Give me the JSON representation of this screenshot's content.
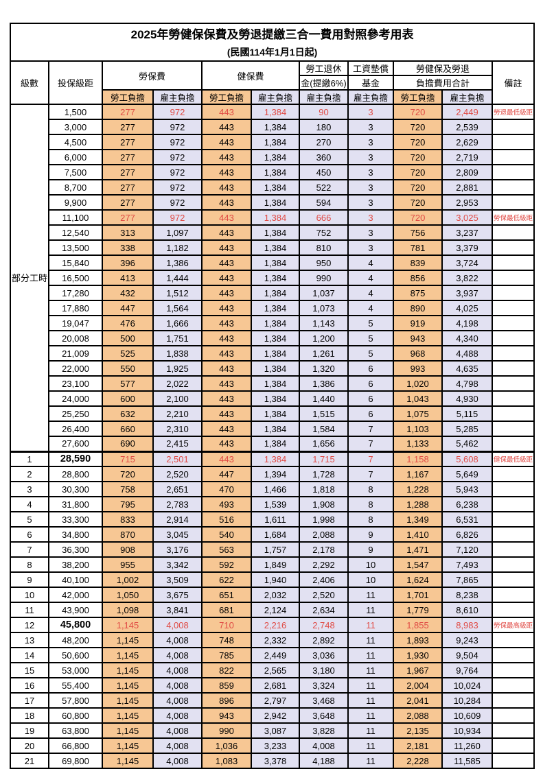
{
  "title": "2025年勞健保保費及勞退提繳三合一費用對照參考用表",
  "subtitle": "(民國114年1月1日起)",
  "header": {
    "level": "級數",
    "bracket": "投保級距",
    "labor": "勞保費",
    "health": "健保費",
    "pension1": "勞工退休",
    "pension2": "金(提繳6%)",
    "fund1": "工資墊償",
    "fund2": "基金",
    "total1": "勞健保及勞退",
    "total2": "負擔費用合計",
    "note": "備註",
    "employee": "勞工負擔",
    "employer": "雇主負擔"
  },
  "part_time_label": "部分工時",
  "part_time_rowspan": 23,
  "colors": {
    "employee_bg": "#F7C794",
    "employer_bg": "#E2E1F2",
    "red_text": "#E04A44"
  },
  "rows": [
    {
      "level": null,
      "bracket": "1,500",
      "v": [
        "277",
        "972",
        "443",
        "1,384",
        "90",
        "3",
        "720",
        "2,449"
      ],
      "note": "勞退最低級距",
      "red": true
    },
    {
      "level": null,
      "bracket": "3,000",
      "v": [
        "277",
        "972",
        "443",
        "1,384",
        "180",
        "3",
        "720",
        "2,539"
      ],
      "note": ""
    },
    {
      "level": null,
      "bracket": "4,500",
      "v": [
        "277",
        "972",
        "443",
        "1,384",
        "270",
        "3",
        "720",
        "2,629"
      ],
      "note": ""
    },
    {
      "level": null,
      "bracket": "6,000",
      "v": [
        "277",
        "972",
        "443",
        "1,384",
        "360",
        "3",
        "720",
        "2,719"
      ],
      "note": ""
    },
    {
      "level": null,
      "bracket": "7,500",
      "v": [
        "277",
        "972",
        "443",
        "1,384",
        "450",
        "3",
        "720",
        "2,809"
      ],
      "note": ""
    },
    {
      "level": null,
      "bracket": "8,700",
      "v": [
        "277",
        "972",
        "443",
        "1,384",
        "522",
        "3",
        "720",
        "2,881"
      ],
      "note": ""
    },
    {
      "level": null,
      "bracket": "9,900",
      "v": [
        "277",
        "972",
        "443",
        "1,384",
        "594",
        "3",
        "720",
        "2,953"
      ],
      "note": ""
    },
    {
      "level": null,
      "bracket": "11,100",
      "v": [
        "277",
        "972",
        "443",
        "1,384",
        "666",
        "3",
        "720",
        "3,025"
      ],
      "note": "勞保最低級距",
      "red": true
    },
    {
      "level": null,
      "bracket": "12,540",
      "v": [
        "313",
        "1,097",
        "443",
        "1,384",
        "752",
        "3",
        "756",
        "3,237"
      ],
      "note": ""
    },
    {
      "level": null,
      "bracket": "13,500",
      "v": [
        "338",
        "1,182",
        "443",
        "1,384",
        "810",
        "3",
        "781",
        "3,379"
      ],
      "note": ""
    },
    {
      "level": null,
      "bracket": "15,840",
      "v": [
        "396",
        "1,386",
        "443",
        "1,384",
        "950",
        "4",
        "839",
        "3,724"
      ],
      "note": ""
    },
    {
      "level": null,
      "bracket": "16,500",
      "v": [
        "413",
        "1,444",
        "443",
        "1,384",
        "990",
        "4",
        "856",
        "3,822"
      ],
      "note": ""
    },
    {
      "level": null,
      "bracket": "17,280",
      "v": [
        "432",
        "1,512",
        "443",
        "1,384",
        "1,037",
        "4",
        "875",
        "3,937"
      ],
      "note": ""
    },
    {
      "level": null,
      "bracket": "17,880",
      "v": [
        "447",
        "1,564",
        "443",
        "1,384",
        "1,073",
        "4",
        "890",
        "4,025"
      ],
      "note": ""
    },
    {
      "level": null,
      "bracket": "19,047",
      "v": [
        "476",
        "1,666",
        "443",
        "1,384",
        "1,143",
        "5",
        "919",
        "4,198"
      ],
      "note": ""
    },
    {
      "level": null,
      "bracket": "20,008",
      "v": [
        "500",
        "1,751",
        "443",
        "1,384",
        "1,200",
        "5",
        "943",
        "4,340"
      ],
      "note": ""
    },
    {
      "level": null,
      "bracket": "21,009",
      "v": [
        "525",
        "1,838",
        "443",
        "1,384",
        "1,261",
        "5",
        "968",
        "4,488"
      ],
      "note": ""
    },
    {
      "level": null,
      "bracket": "22,000",
      "v": [
        "550",
        "1,925",
        "443",
        "1,384",
        "1,320",
        "6",
        "993",
        "4,635"
      ],
      "note": ""
    },
    {
      "level": null,
      "bracket": "23,100",
      "v": [
        "577",
        "2,022",
        "443",
        "1,384",
        "1,386",
        "6",
        "1,020",
        "4,798"
      ],
      "note": ""
    },
    {
      "level": null,
      "bracket": "24,000",
      "v": [
        "600",
        "2,100",
        "443",
        "1,384",
        "1,440",
        "6",
        "1,043",
        "4,930"
      ],
      "note": ""
    },
    {
      "level": null,
      "bracket": "25,250",
      "v": [
        "632",
        "2,210",
        "443",
        "1,384",
        "1,515",
        "6",
        "1,075",
        "5,115"
      ],
      "note": ""
    },
    {
      "level": null,
      "bracket": "26,400",
      "v": [
        "660",
        "2,310",
        "443",
        "1,384",
        "1,584",
        "7",
        "1,103",
        "5,285"
      ],
      "note": ""
    },
    {
      "level": null,
      "bracket": "27,600",
      "v": [
        "690",
        "2,415",
        "443",
        "1,384",
        "1,656",
        "7",
        "1,133",
        "5,462"
      ],
      "note": ""
    },
    {
      "level": "1",
      "bracket": "28,590",
      "v": [
        "715",
        "2,501",
        "443",
        "1,384",
        "1,715",
        "7",
        "1,158",
        "5,608"
      ],
      "note": "健保最低級距",
      "red": true,
      "bold": true,
      "section": true
    },
    {
      "level": "2",
      "bracket": "28,800",
      "v": [
        "720",
        "2,520",
        "447",
        "1,394",
        "1,728",
        "7",
        "1,167",
        "5,649"
      ],
      "note": ""
    },
    {
      "level": "3",
      "bracket": "30,300",
      "v": [
        "758",
        "2,651",
        "470",
        "1,466",
        "1,818",
        "8",
        "1,228",
        "5,943"
      ],
      "note": ""
    },
    {
      "level": "4",
      "bracket": "31,800",
      "v": [
        "795",
        "2,783",
        "493",
        "1,539",
        "1,908",
        "8",
        "1,288",
        "6,238"
      ],
      "note": ""
    },
    {
      "level": "5",
      "bracket": "33,300",
      "v": [
        "833",
        "2,914",
        "516",
        "1,611",
        "1,998",
        "8",
        "1,349",
        "6,531"
      ],
      "note": ""
    },
    {
      "level": "6",
      "bracket": "34,800",
      "v": [
        "870",
        "3,045",
        "540",
        "1,684",
        "2,088",
        "9",
        "1,410",
        "6,826"
      ],
      "note": ""
    },
    {
      "level": "7",
      "bracket": "36,300",
      "v": [
        "908",
        "3,176",
        "563",
        "1,757",
        "2,178",
        "9",
        "1,471",
        "7,120"
      ],
      "note": ""
    },
    {
      "level": "8",
      "bracket": "38,200",
      "v": [
        "955",
        "3,342",
        "592",
        "1,849",
        "2,292",
        "10",
        "1,547",
        "7,493"
      ],
      "note": ""
    },
    {
      "level": "9",
      "bracket": "40,100",
      "v": [
        "1,002",
        "3,509",
        "622",
        "1,940",
        "2,406",
        "10",
        "1,624",
        "7,865"
      ],
      "note": ""
    },
    {
      "level": "10",
      "bracket": "42,000",
      "v": [
        "1,050",
        "3,675",
        "651",
        "2,032",
        "2,520",
        "11",
        "1,701",
        "8,238"
      ],
      "note": ""
    },
    {
      "level": "11",
      "bracket": "43,900",
      "v": [
        "1,098",
        "3,841",
        "681",
        "2,124",
        "2,634",
        "11",
        "1,779",
        "8,610"
      ],
      "note": ""
    },
    {
      "level": "12",
      "bracket": "45,800",
      "v": [
        "1,145",
        "4,008",
        "710",
        "2,216",
        "2,748",
        "11",
        "1,855",
        "8,983"
      ],
      "note": "勞保最高級距",
      "red": true,
      "bold": true
    },
    {
      "level": "13",
      "bracket": "48,200",
      "v": [
        "1,145",
        "4,008",
        "748",
        "2,332",
        "2,892",
        "11",
        "1,893",
        "9,243"
      ],
      "note": ""
    },
    {
      "level": "14",
      "bracket": "50,600",
      "v": [
        "1,145",
        "4,008",
        "785",
        "2,449",
        "3,036",
        "11",
        "1,930",
        "9,504"
      ],
      "note": ""
    },
    {
      "level": "15",
      "bracket": "53,000",
      "v": [
        "1,145",
        "4,008",
        "822",
        "2,565",
        "3,180",
        "11",
        "1,967",
        "9,764"
      ],
      "note": ""
    },
    {
      "level": "16",
      "bracket": "55,400",
      "v": [
        "1,145",
        "4,008",
        "859",
        "2,681",
        "3,324",
        "11",
        "2,004",
        "10,024"
      ],
      "note": ""
    },
    {
      "level": "17",
      "bracket": "57,800",
      "v": [
        "1,145",
        "4,008",
        "896",
        "2,797",
        "3,468",
        "11",
        "2,041",
        "10,284"
      ],
      "note": ""
    },
    {
      "level": "18",
      "bracket": "60,800",
      "v": [
        "1,145",
        "4,008",
        "943",
        "2,942",
        "3,648",
        "11",
        "2,088",
        "10,609"
      ],
      "note": ""
    },
    {
      "level": "19",
      "bracket": "63,800",
      "v": [
        "1,145",
        "4,008",
        "990",
        "3,087",
        "3,828",
        "11",
        "2,135",
        "10,934"
      ],
      "note": ""
    },
    {
      "level": "20",
      "bracket": "66,800",
      "v": [
        "1,145",
        "4,008",
        "1,036",
        "3,233",
        "4,008",
        "11",
        "2,181",
        "11,260"
      ],
      "note": ""
    },
    {
      "level": "21",
      "bracket": "69,800",
      "v": [
        "1,145",
        "4,008",
        "1,083",
        "3,378",
        "4,188",
        "11",
        "2,228",
        "11,585"
      ],
      "note": ""
    }
  ]
}
